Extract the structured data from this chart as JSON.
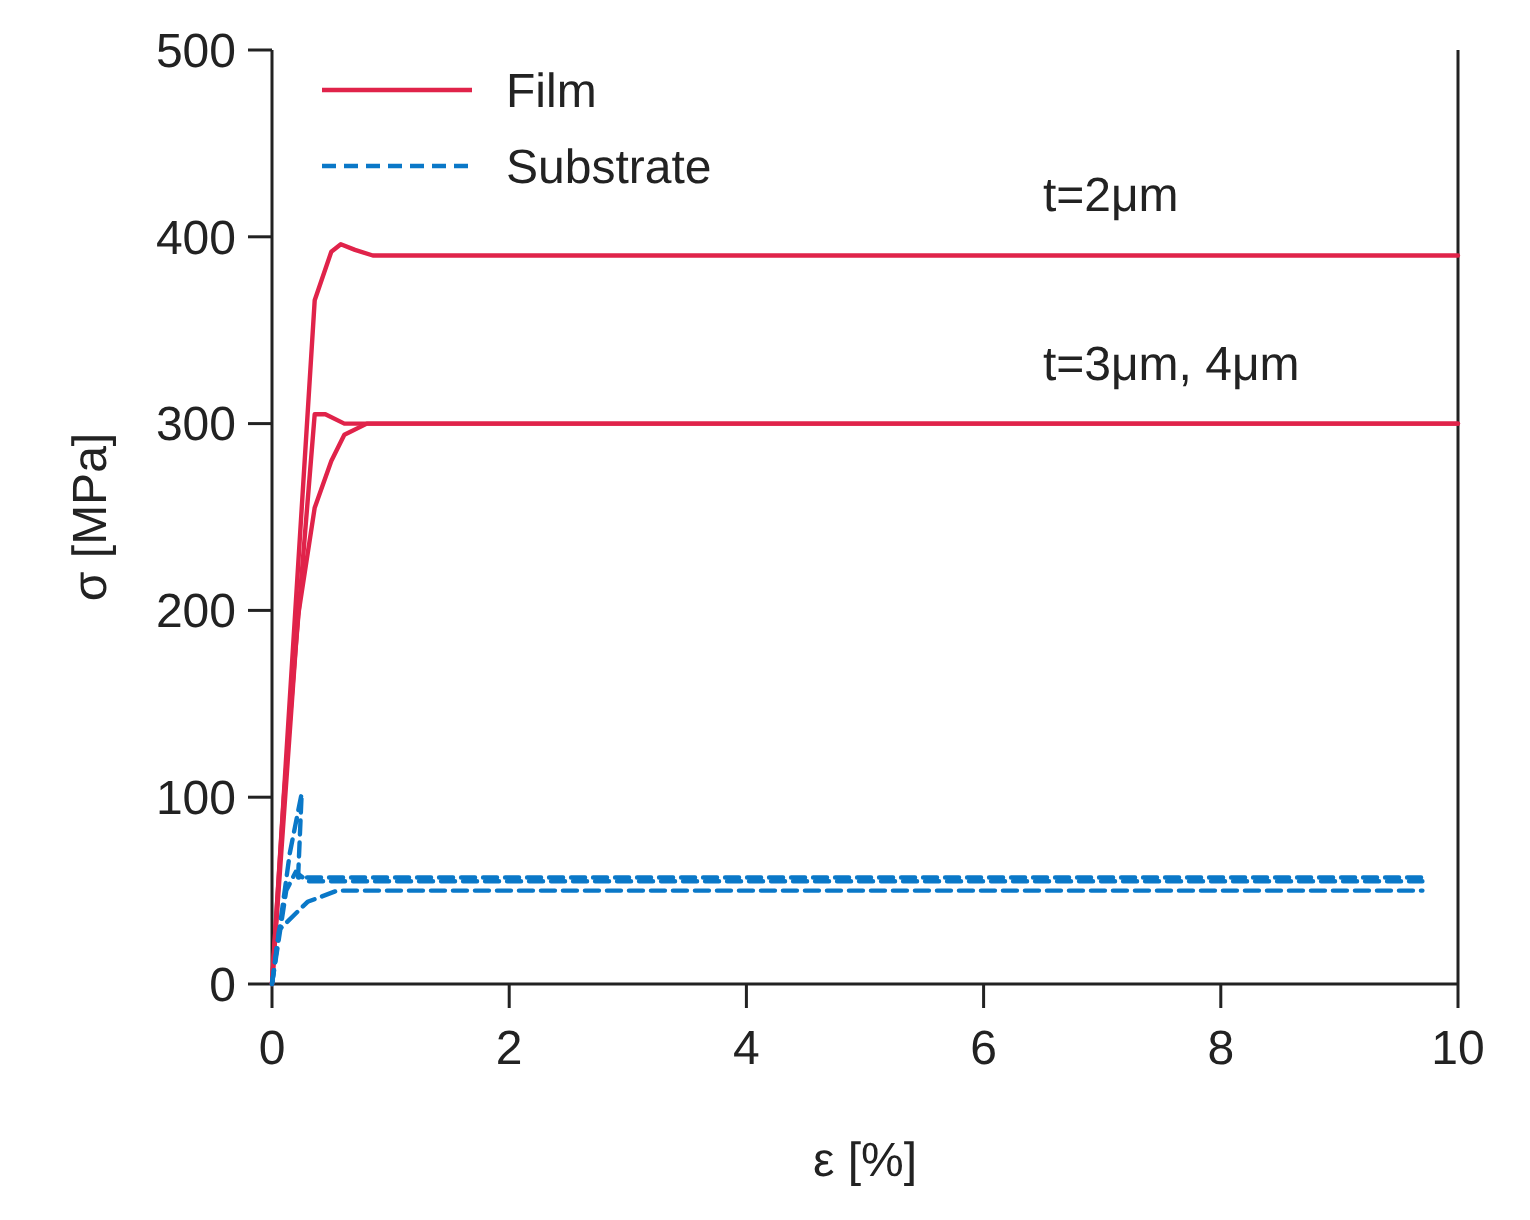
{
  "chart_data": {
    "type": "line",
    "xlabel": "ε [%]",
    "ylabel": "σ [MPa]",
    "xlim": [
      0,
      10
    ],
    "ylim": [
      0,
      500
    ],
    "xticks": [
      0,
      2,
      4,
      6,
      8,
      10
    ],
    "yticks": [
      0,
      100,
      200,
      300,
      400,
      500
    ],
    "grid": false,
    "legend": "top left",
    "marker": "none",
    "series": [
      {
        "name": "Film",
        "color": "#e0234a",
        "line_style": "solid",
        "x": [
          0,
          0.36,
          0.5,
          0.58,
          0.7,
          0.85,
          10
        ],
        "values": [
          0,
          366,
          392,
          396,
          393,
          390,
          390
        ]
      },
      {
        "color": "#e0234a",
        "line_style": "solid",
        "x": [
          0,
          0.2,
          0.36,
          0.45,
          0.61,
          10
        ],
        "values": [
          0,
          180,
          305,
          305,
          300,
          300
        ]
      },
      {
        "color": "#e0234a",
        "line_style": "solid",
        "x": [
          0,
          0.1,
          0.22,
          0.36,
          0.5,
          0.61,
          0.8,
          10
        ],
        "values": [
          0,
          100,
          197,
          255,
          280,
          294,
          300,
          300
        ]
      },
      {
        "name": "Substrate",
        "color": "#0a78c8",
        "line_style": "dashed",
        "x": [
          0,
          0.15,
          0.25,
          0.22,
          0.3,
          9.7
        ],
        "values": [
          0,
          70,
          102,
          57,
          57,
          57
        ]
      },
      {
        "color": "#0a78c8",
        "line_style": "dashed",
        "x": [
          0,
          0.12,
          0.2,
          0.3,
          9.7
        ],
        "values": [
          0,
          50,
          60,
          55,
          55
        ]
      },
      {
        "color": "#0a78c8",
        "line_style": "dashed",
        "x": [
          0,
          0.06,
          0.3,
          0.55,
          1.0,
          9.7
        ],
        "values": [
          0,
          29,
          44,
          50,
          50,
          50
        ]
      }
    ],
    "annotations": [
      {
        "text": "t=2μm",
        "x": 6.5,
        "y": 390
      },
      {
        "text": "t=3μm, 4μm",
        "x": 6.5,
        "y": 300
      }
    ]
  }
}
